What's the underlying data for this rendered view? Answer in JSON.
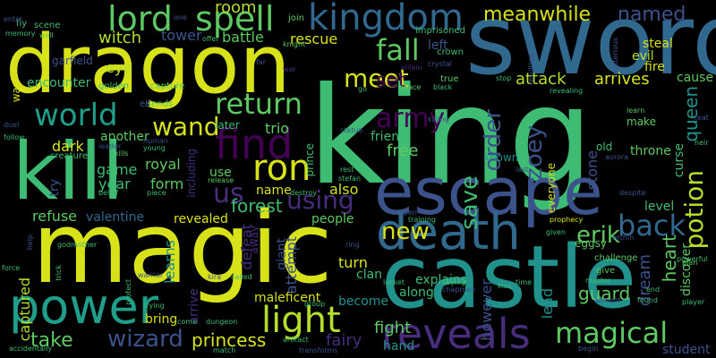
{
  "background": "#000000",
  "palette": {
    "yellow": "#d7e219",
    "lime": "#b5de2b",
    "green": "#5ec962",
    "mint": "#3fbc73",
    "teal": "#21918c",
    "cyan": "#1f9e89",
    "blue": "#3b528b",
    "navy": "#31688e",
    "purple": "#472d7b",
    "violet": "#440154"
  },
  "words": [
    {
      "text": "king",
      "color": "#3fbc73"
    },
    {
      "text": "sword",
      "color": "#31688e"
    },
    {
      "text": "dragon",
      "color": "#d7e219"
    },
    {
      "text": "magic",
      "color": "#d7e219"
    },
    {
      "text": "castle",
      "color": "#21918c"
    },
    {
      "text": "kill",
      "color": "#3fbc73"
    },
    {
      "text": "escape",
      "color": "#3b528b"
    },
    {
      "text": "death",
      "color": "#31688e"
    },
    {
      "text": "power",
      "color": "#1f9e89"
    },
    {
      "text": "lord",
      "color": "#5ec962"
    },
    {
      "text": "spell",
      "color": "#5ec962"
    },
    {
      "text": "kingdom",
      "color": "#31688e"
    },
    {
      "text": "world",
      "color": "#1f9e89"
    },
    {
      "text": "find",
      "color": "#440154"
    },
    {
      "text": "ron",
      "color": "#d7e219"
    },
    {
      "text": "reveals",
      "color": "#472d7b"
    },
    {
      "text": "light",
      "color": "#b5de2b"
    },
    {
      "text": "wizard",
      "color": "#3b528b"
    },
    {
      "text": "magical",
      "color": "#5ec962"
    },
    {
      "text": "potion",
      "color": "#b5de2b"
    },
    {
      "text": "return",
      "color": "#5ec962"
    },
    {
      "text": "wand",
      "color": "#d7e219"
    },
    {
      "text": "fall",
      "color": "#5ec962"
    },
    {
      "text": "meet",
      "color": "#d7e219"
    },
    {
      "text": "save",
      "color": "#3fbc73"
    },
    {
      "text": "back",
      "color": "#31688e"
    },
    {
      "text": "new",
      "color": "#d7e219"
    },
    {
      "text": "army",
      "color": "#440154"
    },
    {
      "text": "using",
      "color": "#472d7b"
    },
    {
      "text": "us",
      "color": "#472d7b"
    },
    {
      "text": "set",
      "color": "#440154"
    },
    {
      "text": "zoey",
      "color": "#3b528b"
    },
    {
      "text": "order",
      "color": "#3b528b"
    },
    {
      "text": "meanwhile",
      "color": "#d7e219"
    },
    {
      "text": "room",
      "color": "#b5de2b"
    },
    {
      "text": "named",
      "color": "#3b528b"
    },
    {
      "text": "take",
      "color": "#5ec962"
    },
    {
      "text": "princess",
      "color": "#d7e219"
    },
    {
      "text": "fairy",
      "color": "#472d7b"
    },
    {
      "text": "forest",
      "color": "#3fbc73"
    },
    {
      "text": "guard",
      "color": "#5ec962"
    },
    {
      "text": "erik",
      "color": "#5ec962"
    },
    {
      "text": "heart",
      "color": "#5ec962"
    },
    {
      "text": "queen",
      "color": "#21918c"
    },
    {
      "text": "dream",
      "color": "#3b528b"
    },
    {
      "text": "witch",
      "color": "#b5de2b"
    },
    {
      "text": "tower",
      "color": "#3b528b"
    },
    {
      "text": "battle",
      "color": "#5ec962"
    },
    {
      "text": "rescue",
      "color": "#d7e219"
    },
    {
      "text": "eye",
      "color": "#b5de2b"
    },
    {
      "text": "attack",
      "color": "#b5de2b"
    },
    {
      "text": "arrives",
      "color": "#d7e219"
    },
    {
      "text": "cause",
      "color": "#5ec962"
    },
    {
      "text": "fire",
      "color": "#d7e219"
    },
    {
      "text": "steal",
      "color": "#d7e219"
    },
    {
      "text": "evil",
      "color": "#b5de2b"
    },
    {
      "text": "captured",
      "color": "#b5de2b"
    },
    {
      "text": "refuse",
      "color": "#5ec962"
    },
    {
      "text": "valentine",
      "color": "#31688e"
    },
    {
      "text": "revealed",
      "color": "#d7e219"
    },
    {
      "text": "people",
      "color": "#5ec962"
    },
    {
      "text": "explains",
      "color": "#3fbc73"
    },
    {
      "text": "along",
      "color": "#3fbc73"
    },
    {
      "text": "lead",
      "color": "#21918c"
    },
    {
      "text": "however",
      "color": "#3b528b"
    },
    {
      "text": "fight",
      "color": "#5ec962"
    },
    {
      "text": "hand",
      "color": "#21918c"
    },
    {
      "text": "student",
      "color": "#3b528b"
    },
    {
      "text": "turn",
      "color": "#d7e219"
    },
    {
      "text": "clan",
      "color": "#3fbc73"
    },
    {
      "text": "become",
      "color": "#21918c"
    },
    {
      "text": "bring",
      "color": "#d7e219"
    },
    {
      "text": "arrive",
      "color": "#472d7b"
    },
    {
      "text": "maleficent",
      "color": "#d7e219"
    },
    {
      "text": "learns",
      "color": "#21918c"
    },
    {
      "text": "defeat",
      "color": "#472d7b"
    },
    {
      "text": "giant",
      "color": "#3b528b"
    },
    {
      "text": "attempt",
      "color": "#3b528b"
    },
    {
      "text": "also",
      "color": "#d7e219"
    },
    {
      "text": "name",
      "color": "#d7e219"
    },
    {
      "text": "away",
      "color": "#472d7b"
    },
    {
      "text": "use",
      "color": "#5ec962"
    },
    {
      "text": "form",
      "color": "#5ec962"
    },
    {
      "text": "year",
      "color": "#3fbc73"
    },
    {
      "text": "game",
      "color": "#3fbc73"
    },
    {
      "text": "royal",
      "color": "#5ec962"
    },
    {
      "text": "dark",
      "color": "#d7e219"
    },
    {
      "text": "another",
      "color": "#5ec962"
    },
    {
      "text": "try",
      "color": "#3b528b"
    },
    {
      "text": "free",
      "color": "#5ec962"
    },
    {
      "text": "friend",
      "color": "#3fbc73"
    },
    {
      "text": "known",
      "color": "#21918c"
    },
    {
      "text": "everyone",
      "color": "#d7e219"
    },
    {
      "text": "curse",
      "color": "#3fbc73"
    },
    {
      "text": "throne",
      "color": "#5ec962"
    },
    {
      "text": "level",
      "color": "#3fbc73"
    },
    {
      "text": "discover",
      "color": "#5ec962"
    },
    {
      "text": "stone",
      "color": "#3b528b"
    },
    {
      "text": "old",
      "color": "#3fbc73"
    },
    {
      "text": "make",
      "color": "#5ec962"
    },
    {
      "text": "later",
      "color": "#3fbc73"
    },
    {
      "text": "trio",
      "color": "#5ec962"
    },
    {
      "text": "prince",
      "color": "#3fbc73"
    },
    {
      "text": "encounter",
      "color": "#3fbc73"
    },
    {
      "text": "garfield",
      "color": "#3b528b"
    },
    {
      "text": "golden",
      "color": "#3fbc73"
    },
    {
      "text": "capture",
      "color": "#5ec962"
    },
    {
      "text": "offer",
      "color": "#3fbc73"
    },
    {
      "text": "knight",
      "color": "#5ec962"
    },
    {
      "text": "crown",
      "color": "#3fbc73"
    },
    {
      "text": "left",
      "color": "#3b528b"
    },
    {
      "text": "imprisoned",
      "color": "#3fbc73"
    },
    {
      "text": "join",
      "color": "#5ec962"
    },
    {
      "text": "true",
      "color": "#5ec962"
    },
    {
      "text": "crystal",
      "color": "#3b528b"
    },
    {
      "text": "villain",
      "color": "#472d7b"
    },
    {
      "text": "black",
      "color": "#3fbc73"
    },
    {
      "text": "peace",
      "color": "#5ec962"
    },
    {
      "text": "stop",
      "color": "#3fbc73"
    },
    {
      "text": "revealing",
      "color": "#3fbc73"
    },
    {
      "text": "mysterious",
      "color": "#3b528b"
    },
    {
      "text": "scene",
      "color": "#3fbc73"
    },
    {
      "text": "fly",
      "color": "#3fbc73"
    },
    {
      "text": "wall",
      "color": "#5ec962"
    },
    {
      "text": "memory",
      "color": "#3fbc73"
    },
    {
      "text": "enter",
      "color": "#3b528b"
    },
    {
      "text": "sends",
      "color": "#5ec962"
    },
    {
      "text": "kills",
      "color": "#5ec962"
    },
    {
      "text": "elf",
      "color": "#3b528b"
    },
    {
      "text": "war",
      "color": "#472d7b"
    },
    {
      "text": "far",
      "color": "#3b528b"
    },
    {
      "text": "one",
      "color": "#3b528b"
    },
    {
      "text": "leader",
      "color": "#3b528b"
    },
    {
      "text": "human",
      "color": "#3b528b"
    },
    {
      "text": "young",
      "color": "#3fbc73"
    },
    {
      "text": "creature",
      "color": "#3fbc73"
    },
    {
      "text": "including",
      "color": "#472d7b"
    },
    {
      "text": "release",
      "color": "#5ec962"
    },
    {
      "text": "destroy",
      "color": "#3fbc73"
    },
    {
      "text": "rest",
      "color": "#3fbc73"
    },
    {
      "text": "stefan",
      "color": "#3fbc73"
    },
    {
      "text": "statue",
      "color": "#3b528b"
    },
    {
      "text": "killing",
      "color": "#3b528b"
    },
    {
      "text": "last",
      "color": "#3b528b"
    },
    {
      "text": "aurora",
      "color": "#3b528b"
    },
    {
      "text": "learn",
      "color": "#5ec962"
    },
    {
      "text": "heir",
      "color": "#3fbc73"
    },
    {
      "text": "despite",
      "color": "#3b528b"
    },
    {
      "text": "prophecy",
      "color": "#d7e219"
    },
    {
      "text": "training",
      "color": "#3fbc73"
    },
    {
      "text": "open",
      "color": "#3b528b"
    },
    {
      "text": "given",
      "color": "#3fbc73"
    },
    {
      "text": "eggsy",
      "color": "#5ec962"
    },
    {
      "text": "within",
      "color": "#3b528b"
    },
    {
      "text": "ring",
      "color": "#3b528b"
    },
    {
      "text": "kiss",
      "color": "#3fbc73"
    },
    {
      "text": "challenge",
      "color": "#5ec962"
    },
    {
      "text": "give",
      "color": "#5ec962"
    },
    {
      "text": "plan",
      "color": "#5ec962"
    },
    {
      "text": "powerful",
      "color": "#3fbc73"
    },
    {
      "text": "end",
      "color": "#3fbc73"
    },
    {
      "text": "master",
      "color": "#3fbc73"
    },
    {
      "text": "found",
      "color": "#3fbc73"
    },
    {
      "text": "player",
      "color": "#3fbc73"
    },
    {
      "text": "ancient",
      "color": "#3b528b"
    },
    {
      "text": "begin",
      "color": "#3b528b"
    },
    {
      "text": "time",
      "color": "#3fbc73"
    },
    {
      "text": "dying",
      "color": "#3fbc73"
    },
    {
      "text": "chapman",
      "color": "#3b528b"
    },
    {
      "text": "locket",
      "color": "#3fbc73"
    },
    {
      "text": "kira",
      "color": "#3b528b"
    },
    {
      "text": "called",
      "color": "#3fbc73"
    },
    {
      "text": "group",
      "color": "#3fbc73"
    },
    {
      "text": "artifact",
      "color": "#3fbc73"
    },
    {
      "text": "dungeon",
      "color": "#3fbc73"
    },
    {
      "text": "come",
      "color": "#3fbc73"
    },
    {
      "text": "transforms",
      "color": "#3b528b"
    },
    {
      "text": "match",
      "color": "#3fbc73"
    },
    {
      "text": "trying",
      "color": "#3fbc73"
    },
    {
      "text": "protect",
      "color": "#3fbc73"
    },
    {
      "text": "warrior",
      "color": "#3b528b"
    },
    {
      "text": "trick",
      "color": "#3fbc73"
    },
    {
      "text": "godmother",
      "color": "#3fbc73"
    },
    {
      "text": "force",
      "color": "#3fbc73"
    },
    {
      "text": "help",
      "color": "#3b528b"
    },
    {
      "text": "accidentally",
      "color": "#3fbc73"
    },
    {
      "text": "piece",
      "color": "#3fbc73"
    },
    {
      "text": "belief",
      "color": "#3fbc73"
    },
    {
      "text": "follow",
      "color": "#3fbc73"
    },
    {
      "text": "duel",
      "color": "#3b528b"
    },
    {
      "text": "way",
      "color": "#d7e219"
    },
    {
      "text": "resulting",
      "color": "#3b528b"
    },
    {
      "text": "go",
      "color": "#3fbc73"
    },
    {
      "text": "feat",
      "color": "#3b528b"
    }
  ]
}
